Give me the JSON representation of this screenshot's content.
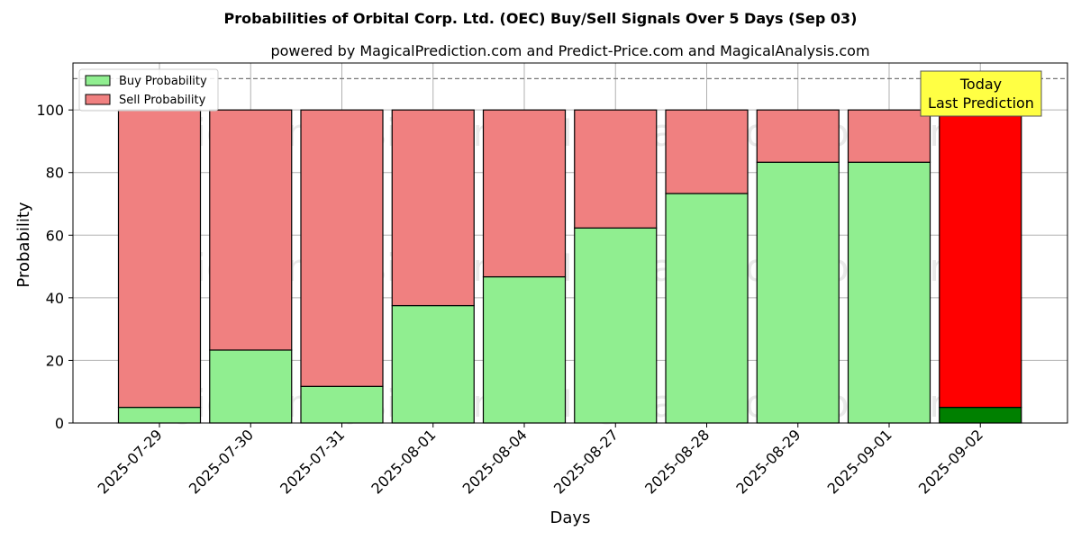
{
  "chart_data": {
    "type": "bar",
    "stacked": true,
    "title": "Probabilities of Orbital Corp. Ltd. (OEC) Buy/Sell Signals Over 5 Days (Sep 03)",
    "subtitle": "powered by MagicalPrediction.com and Predict-Price.com and MagicalAnalysis.com",
    "xlabel": "Days",
    "ylabel": "Probability",
    "ylim": [
      0,
      115
    ],
    "yticks": [
      0,
      20,
      40,
      60,
      80,
      100
    ],
    "reference_line": 110,
    "grid": true,
    "legend_position": "top-left",
    "categories": [
      "2025-07-29",
      "2025-07-30",
      "2025-07-31",
      "2025-08-01",
      "2025-08-04",
      "2025-08-27",
      "2025-08-28",
      "2025-08-29",
      "2025-09-01",
      "2025-09-02"
    ],
    "series": [
      {
        "name": "Buy Probability",
        "color": "#90ee90",
        "values": [
          5,
          23.3,
          11.7,
          37.5,
          46.7,
          62.3,
          73.3,
          83.3,
          83.3,
          5
        ]
      },
      {
        "name": "Sell Probability",
        "color": "#f08080",
        "values": [
          95,
          76.7,
          88.3,
          62.5,
          53.3,
          37.7,
          26.7,
          16.7,
          16.7,
          95
        ]
      }
    ],
    "highlight": {
      "category": "2025-09-02",
      "buy_color": "#008000",
      "sell_color": "#ff0000"
    },
    "annotation": {
      "lines": [
        "Today",
        "Last Prediction"
      ],
      "background": "#ffff44"
    },
    "watermark": [
      "MagicalAnalysis.com",
      "MagicalPrediction.com"
    ]
  }
}
